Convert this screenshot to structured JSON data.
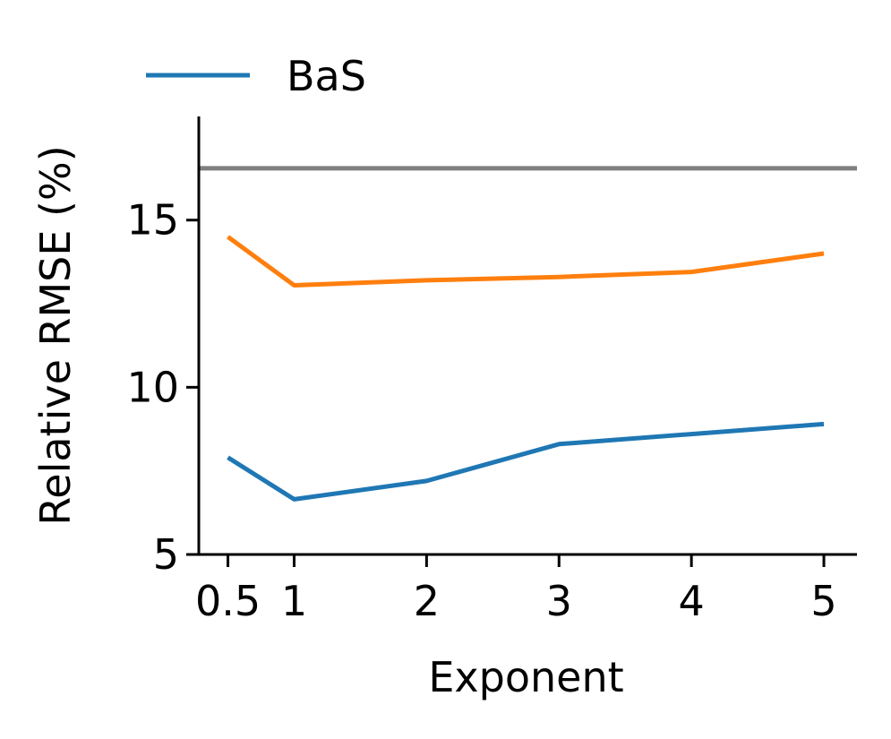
{
  "chart_data": {
    "type": "line",
    "title": "",
    "xlabel": "Exponent",
    "ylabel": "Relative RMSE (%)",
    "xlim": [
      0.28,
      5.25
    ],
    "ylim": [
      5,
      18.1
    ],
    "x_ticks": [
      {
        "value": 0.5,
        "label": "0.5"
      },
      {
        "value": 1,
        "label": "1"
      },
      {
        "value": 2,
        "label": "2"
      },
      {
        "value": 3,
        "label": "3"
      },
      {
        "value": 4,
        "label": "4"
      },
      {
        "value": 5,
        "label": "5"
      }
    ],
    "y_ticks": [
      {
        "value": 5,
        "label": "5"
      },
      {
        "value": 10,
        "label": "10"
      },
      {
        "value": 15,
        "label": "15"
      }
    ],
    "grid": false,
    "legend": {
      "position": "top-left",
      "entries": [
        "BaS"
      ]
    },
    "series": [
      {
        "name": "BaS",
        "color": "#1f77b4",
        "x": [
          0.5,
          1,
          2,
          3,
          4,
          5
        ],
        "y": [
          7.9,
          6.65,
          7.2,
          8.3,
          8.6,
          8.9
        ]
      },
      {
        "color": "#ff7f0e",
        "x": [
          0.5,
          1,
          2,
          3,
          4,
          5
        ],
        "y": [
          14.5,
          13.05,
          13.2,
          13.3,
          13.45,
          14.0
        ]
      }
    ],
    "reference_lines": [
      {
        "orientation": "horizontal",
        "y": 16.55,
        "color": "#7f7f7f"
      }
    ]
  }
}
